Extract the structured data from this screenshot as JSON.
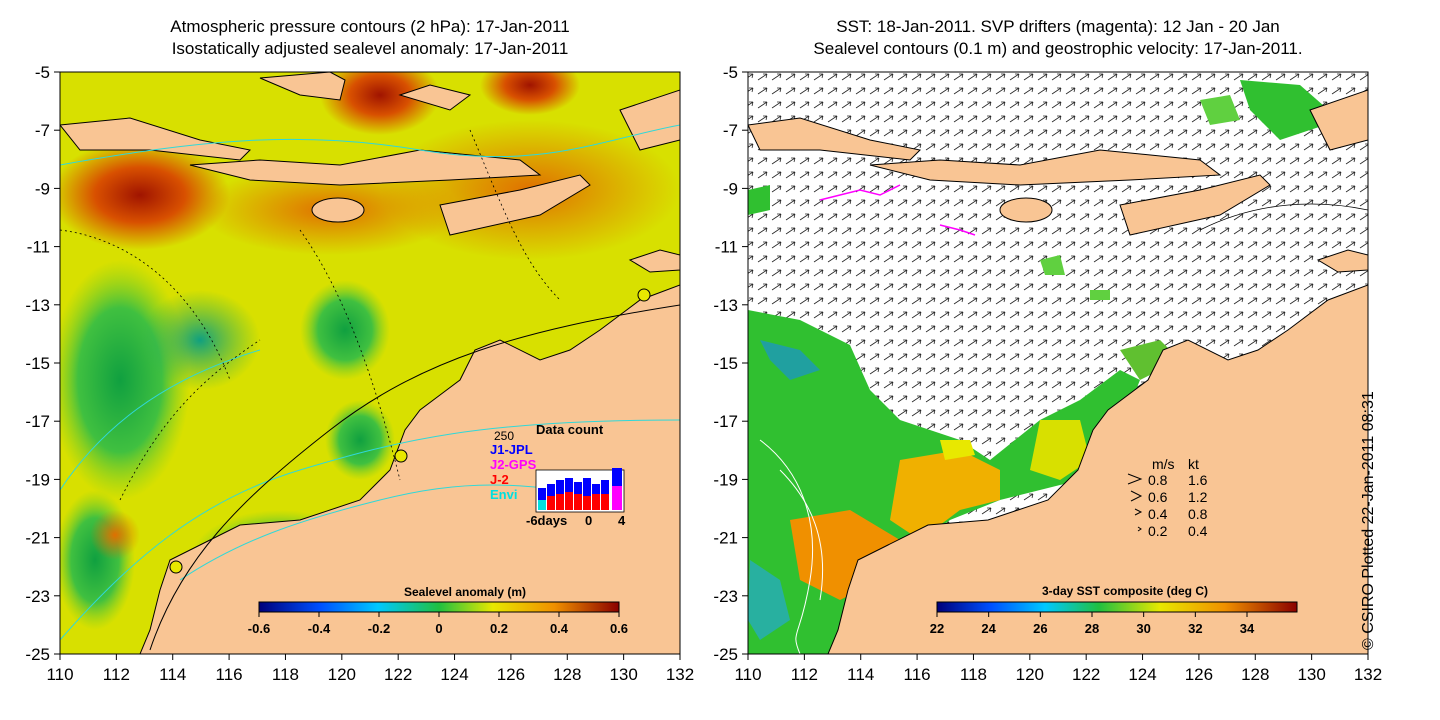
{
  "left_panel": {
    "title_line1": "Atmospheric pressure contours (2 hPa): 17-Jan-2011",
    "title_line2": "Isostatically adjusted sealevel anomaly: 17-Jan-2011",
    "colorbar_label": "Sealevel anomaly (m)",
    "colorbar_ticks": [
      "-0.6",
      "-0.4",
      "-0.2",
      "0",
      "0.2",
      "0.4",
      "0.6"
    ],
    "x_ticks": [
      "110",
      "112",
      "114",
      "116",
      "118",
      "120",
      "122",
      "124",
      "126",
      "128",
      "130",
      "132"
    ],
    "y_ticks": [
      "-5",
      "-7",
      "-9",
      "-11",
      "-13",
      "-15",
      "-17",
      "-19",
      "-21",
      "-23",
      "-25"
    ],
    "inset": {
      "title": "Data count",
      "ymax_label": "250",
      "legend": [
        {
          "name": "J1-JPL",
          "color": "#0000ff"
        },
        {
          "name": "J2-GPS",
          "color": "#ff00ff"
        },
        {
          "name": "J-2",
          "color": "#ff0000"
        },
        {
          "name": "Envi",
          "color": "#00e0e0"
        }
      ],
      "xlabel_left": "-6days",
      "xlabel_mid": "0",
      "xlabel_right": "4"
    }
  },
  "right_panel": {
    "title_line1": "SST: 18-Jan-2011. SVP drifters (magenta): 12 Jan - 20 Jan",
    "title_line2": "Sealevel contours (0.1 m) and geostrophic velocity: 17-Jan-2011.",
    "colorbar_label": "3-day SST composite (deg C)",
    "colorbar_ticks": [
      "22",
      "24",
      "26",
      "28",
      "30",
      "32",
      "34"
    ],
    "x_ticks": [
      "110",
      "112",
      "114",
      "116",
      "118",
      "120",
      "122",
      "124",
      "126",
      "128",
      "130",
      "132"
    ],
    "y_ticks": [
      "-5",
      "-7",
      "-9",
      "-11",
      "-13",
      "-15",
      "-17",
      "-19",
      "-21",
      "-23",
      "-25"
    ],
    "speed_legend": {
      "header_ms": "m/s",
      "header_kt": "kt",
      "rows": [
        {
          "ms": "0.8",
          "kt": "1.6"
        },
        {
          "ms": "0.6",
          "kt": "1.2"
        },
        {
          "ms": "0.4",
          "kt": "0.8"
        },
        {
          "ms": "0.2",
          "kt": "0.4"
        }
      ]
    }
  },
  "credit": "© CSIRO Plotted 22-Jan-2011 08:31",
  "colors": {
    "land": "#f9c594",
    "ocean_yellow": "#e8e800",
    "anomaly_high": "#c02800",
    "anomaly_low": "#20b040",
    "sst_green": "#30c030",
    "isobath": "#30d8d8"
  }
}
